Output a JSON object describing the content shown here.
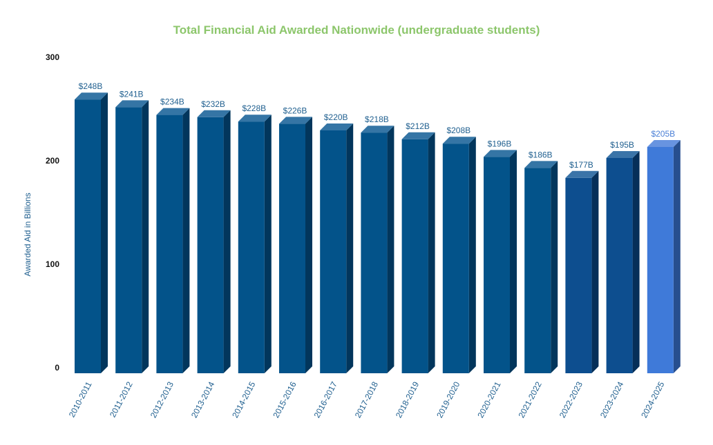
{
  "chart_data": {
    "type": "bar",
    "title": "Total Financial Aid Awarded Nationwide (undergraduate students)",
    "ylabel": "Awarded Aid in Billions",
    "xlabel": "",
    "ylim": [
      0,
      300
    ],
    "yticks": [
      "0",
      "100",
      "200",
      "300"
    ],
    "grid": false,
    "style": "3d",
    "categories": [
      "2010-2011",
      "2011-2012",
      "2012-2013",
      "2013-2014",
      "2014-2015",
      "2015-2016",
      "2016-2017",
      "2017-2018",
      "2018-2019",
      "2019-2020",
      "2020-2021",
      "2021-2022",
      "2022-2023",
      "2023-2024",
      "2024-2025"
    ],
    "values": [
      248,
      241,
      234,
      232,
      228,
      226,
      220,
      218,
      212,
      208,
      196,
      186,
      177,
      195,
      205
    ],
    "labels": [
      "$248B",
      "$241B",
      "$234B",
      "$232B",
      "$228B",
      "$226B",
      "$220B",
      "$218B",
      "$212B",
      "$208B",
      "$196B",
      "$186B",
      "$177B",
      "$195B",
      "$205B"
    ],
    "colors": {
      "title": "#8cc66b",
      "axis_label": "#1f5f8f",
      "bar_default": "#03538a",
      "bar_recent": "#0d4e8f",
      "bar_highlight": "#3f7ad9"
    }
  }
}
